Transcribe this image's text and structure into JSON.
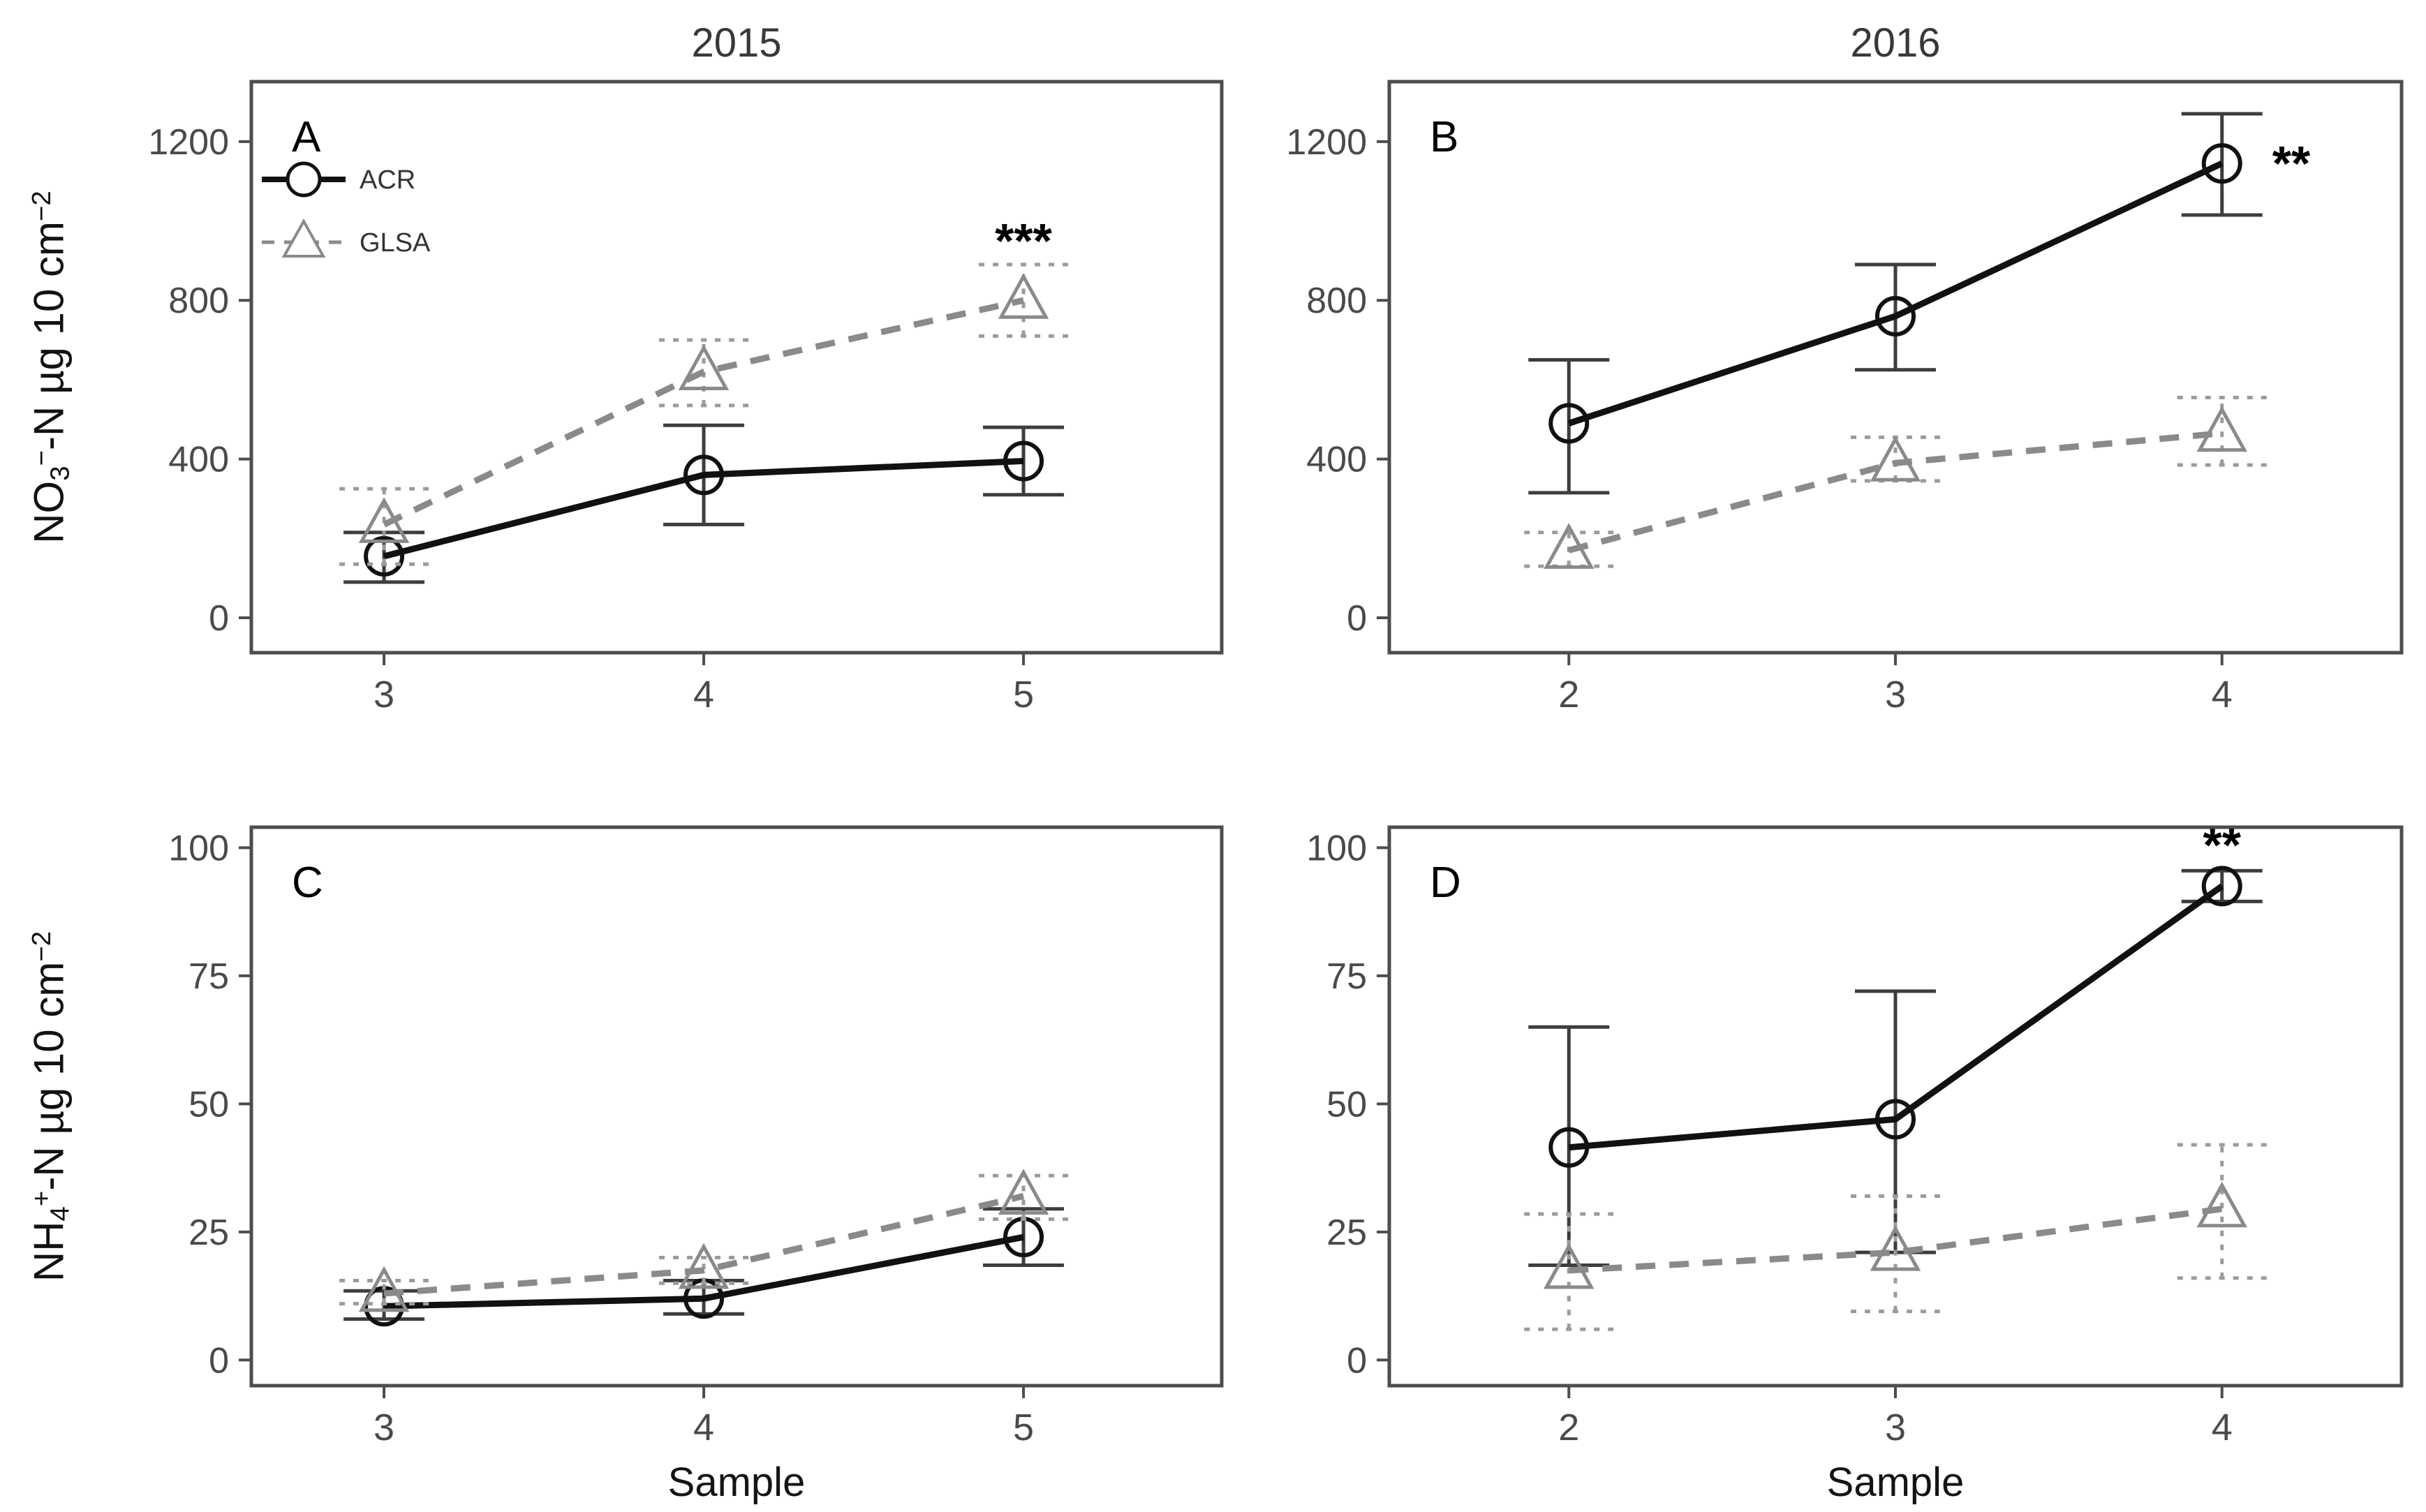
{
  "figure": {
    "column_titles": [
      "2015",
      "2016"
    ],
    "x_axis_title": "Sample",
    "y_axis_titles": {
      "no3": {
        "base1": "NO",
        "sub": "3",
        "sup1": "−",
        "base2": "-N µg 10 cm",
        "sup2": "−2"
      },
      "nh4": {
        "base1": "NH",
        "sub": "4",
        "sup1": "+",
        "base2": "-N µg 10 cm",
        "sup2": "−2"
      }
    },
    "legend": {
      "items": [
        "ACR",
        "GLSA"
      ]
    },
    "colors": {
      "acr": "#111111",
      "glsa": "#8a8a8a",
      "acr_error": "#3d3d3d",
      "glsa_error": "#9b9b9b",
      "panel_border": "#4d4d4d",
      "tick_label": "#4a4a4a",
      "annotation": "#000000"
    }
  },
  "chart_data": [
    {
      "type": "line",
      "id": "A",
      "column_title": "2015",
      "y_measure": "NO3-N ug 10 cm-2",
      "x": [
        3,
        4,
        5
      ],
      "xlim": [
        2.585,
        5.62
      ],
      "ylim": [
        -88,
        1351
      ],
      "yticks": [
        0,
        400,
        800,
        1200
      ],
      "grid": false,
      "legend_visible": true,
      "series": [
        {
          "name": "ACR",
          "marker": "circle",
          "linetype": "solid",
          "y": [
            155,
            360,
            395
          ],
          "lo": [
            90,
            235,
            310
          ],
          "hi": [
            215,
            485,
            480
          ]
        },
        {
          "name": "GLSA",
          "marker": "triangle",
          "linetype": "dashed",
          "y": [
            235,
            620,
            800
          ],
          "lo": [
            135,
            535,
            710
          ],
          "hi": [
            325,
            700,
            890
          ]
        }
      ],
      "annotations": [
        {
          "text": "***",
          "x": 5,
          "y": 950,
          "align": "middle",
          "dx": 0
        }
      ]
    },
    {
      "type": "line",
      "id": "B",
      "column_title": "2016",
      "y_measure": "NO3-N ug 10 cm-2",
      "x": [
        2,
        3,
        4
      ],
      "xlim": [
        1.45,
        4.55
      ],
      "ylim": [
        -88,
        1351
      ],
      "yticks": [
        0,
        400,
        800,
        1200
      ],
      "grid": false,
      "legend_visible": false,
      "series": [
        {
          "name": "ACR",
          "marker": "circle",
          "linetype": "solid",
          "y": [
            490,
            760,
            1145
          ],
          "lo": [
            315,
            625,
            1015
          ],
          "hi": [
            650,
            890,
            1270
          ]
        },
        {
          "name": "GLSA",
          "marker": "triangle",
          "linetype": "dashed",
          "y": [
            170,
            390,
            465
          ],
          "lo": [
            130,
            345,
            385
          ],
          "hi": [
            215,
            455,
            555
          ]
        }
      ],
      "annotations": [
        {
          "text": "**",
          "x": 4,
          "y": 1145,
          "align": "start",
          "dx": 72
        }
      ]
    },
    {
      "type": "line",
      "id": "C",
      "column_title": "2015",
      "y_measure": "NH4-N ug 10 cm-2",
      "x": [
        3,
        4,
        5
      ],
      "xlim": [
        2.585,
        5.62
      ],
      "ylim": [
        -5,
        104
      ],
      "yticks": [
        0,
        25,
        50,
        75,
        100
      ],
      "grid": false,
      "legend_visible": false,
      "series": [
        {
          "name": "ACR",
          "marker": "circle",
          "linetype": "solid",
          "y": [
            10.5,
            12,
            24
          ],
          "lo": [
            8,
            9,
            18.5
          ],
          "hi": [
            13.5,
            15.5,
            29.5
          ]
        },
        {
          "name": "GLSA",
          "marker": "triangle",
          "linetype": "dashed",
          "y": [
            13,
            17.5,
            32
          ],
          "lo": [
            11,
            15,
            27.5
          ],
          "hi": [
            15.5,
            20,
            36
          ]
        }
      ],
      "annotations": []
    },
    {
      "type": "line",
      "id": "D",
      "column_title": "2016",
      "y_measure": "NH4-N ug 10 cm-2",
      "x": [
        2,
        3,
        4
      ],
      "xlim": [
        1.45,
        4.55
      ],
      "ylim": [
        -5,
        104
      ],
      "yticks": [
        0,
        25,
        50,
        75,
        100
      ],
      "grid": false,
      "legend_visible": false,
      "series": [
        {
          "name": "ACR",
          "marker": "circle",
          "linetype": "solid",
          "y": [
            41.5,
            47,
            92.5
          ],
          "lo": [
            18.5,
            21,
            89.5
          ],
          "hi": [
            65,
            72,
            95.5
          ]
        },
        {
          "name": "GLSA",
          "marker": "triangle",
          "linetype": "dashed",
          "y": [
            17.5,
            21,
            29.5
          ],
          "lo": [
            6,
            9.5,
            16
          ],
          "hi": [
            28.5,
            32,
            42
          ]
        }
      ],
      "annotations": [
        {
          "text": "**",
          "x": 4,
          "y": 100.5,
          "align": "middle",
          "dx": 0
        }
      ]
    }
  ]
}
